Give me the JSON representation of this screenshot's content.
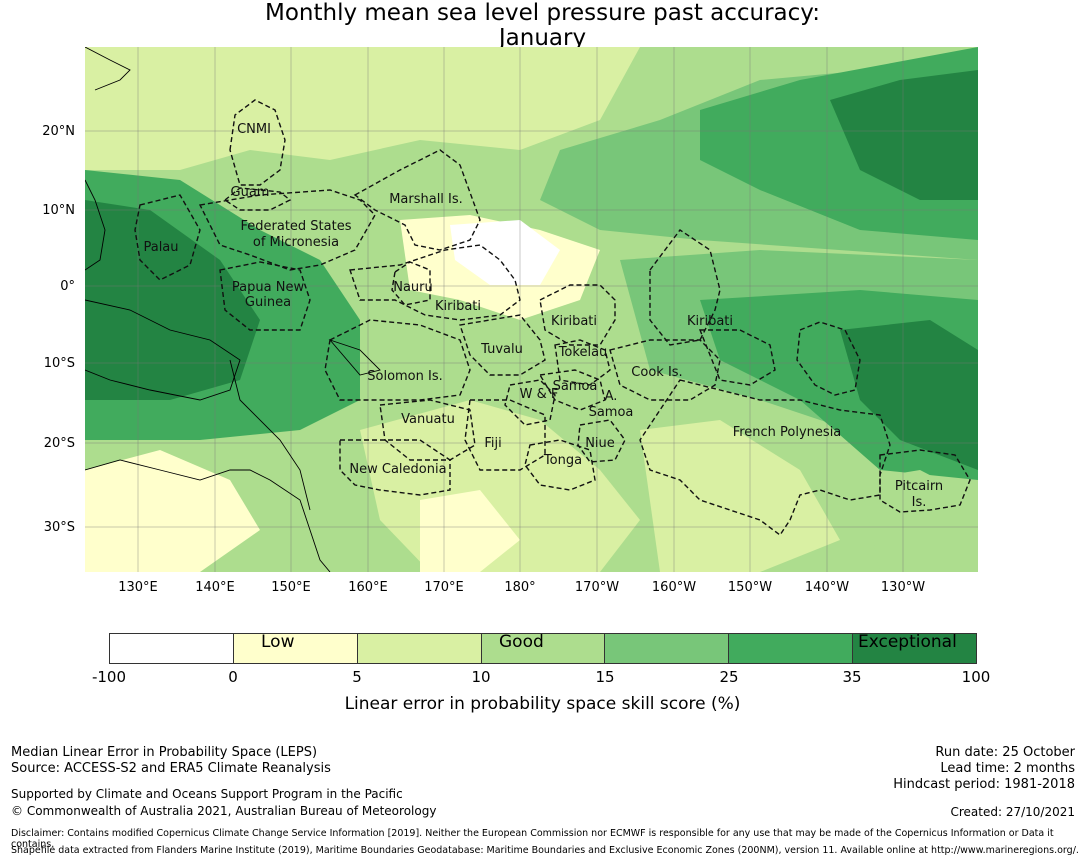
{
  "title": {
    "line1": "Monthly mean sea level pressure past accuracy:",
    "line2": "January"
  },
  "map": {
    "lat_labels": [
      "20°N",
      "10°N",
      "0°",
      "10°S",
      "20°S",
      "30°S"
    ],
    "lon_labels": [
      "130°E",
      "140°E",
      "150°E",
      "160°E",
      "170°E",
      "180°",
      "170°W",
      "160°W",
      "150°W",
      "140°W",
      "130°W"
    ],
    "regions": [
      {
        "name": "CNMI"
      },
      {
        "name": "Guam"
      },
      {
        "name": "Marshall Is."
      },
      {
        "name": "Federated States"
      },
      {
        "name": "of Micronesia"
      },
      {
        "name": "Palau"
      },
      {
        "name": "Papua New"
      },
      {
        "name": "Guinea"
      },
      {
        "name": "Nauru"
      },
      {
        "name": "Kiribati"
      },
      {
        "name": "Kiribati"
      },
      {
        "name": "Kiribati"
      },
      {
        "name": "Tuvalu"
      },
      {
        "name": "Tokelau"
      },
      {
        "name": "Solomon Is."
      },
      {
        "name": "Samoa"
      },
      {
        "name": "W & F"
      },
      {
        "name": "A."
      },
      {
        "name": "Samoa"
      },
      {
        "name": "Cook Is."
      },
      {
        "name": "Vanuatu"
      },
      {
        "name": "Fiji"
      },
      {
        "name": "Niue"
      },
      {
        "name": "French Polynesia"
      },
      {
        "name": "Tonga"
      },
      {
        "name": "New Caledonia"
      },
      {
        "name": "Pitcairn"
      },
      {
        "name": "Is."
      }
    ]
  },
  "colorbar": {
    "colors": [
      "#ffffff",
      "#ffffcc",
      "#d9f0a3",
      "#addd8e",
      "#78c679",
      "#41ab5d",
      "#238443"
    ],
    "ticks": [
      "-100",
      "0",
      "5",
      "10",
      "15",
      "25",
      "35",
      "100"
    ],
    "words": [
      "Low",
      "Good",
      "Exceptional"
    ],
    "label": "Linear error in probability space skill score (%)"
  },
  "footer": {
    "left_line1": "Median Linear Error in Probability Space (LEPS)",
    "left_line2": "Source: ACCESS-S2 and ERA5 Climate Reanalysis",
    "left_line3": "Supported by Climate and Oceans Support Program in the Pacific",
    "left_line4": "© Commonwealth of Australia 2021, Australian Bureau of Meteorology",
    "run_date": "Run date: 25 October",
    "lead_time": "Lead time: 2 months",
    "hindcast": "Hindcast period: 1981-2018",
    "created": "Created: 27/10/2021",
    "disclaimer": "Disclaimer: Contains modified Copernicus Climate Change Service Information [2019]. Neither the European Commission nor ECMWF is responsible for any use that may be made of the Copernicus Information or Data it contains.",
    "shapefile": "Shapefile data extracted from Flanders Marine Institute (2019), Maritime Boundaries Geodatabase: Maritime Boundaries and Exclusive Economic Zones (200NM), version 11. Available online at http://www.marineregions.org/."
  }
}
